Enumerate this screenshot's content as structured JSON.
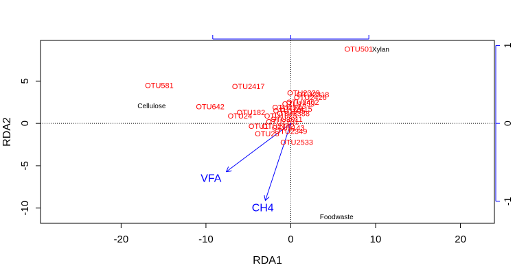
{
  "chart_data": {
    "type": "scatter",
    "title": "",
    "xlabel": "RDA1",
    "ylabel": "RDA2",
    "xlim": [
      -29.5,
      24
    ],
    "ylim": [
      -11.8,
      9.8
    ],
    "xticks": [
      "-20",
      "-10",
      "0",
      "10",
      "20"
    ],
    "xtick_values": [
      -20,
      -10,
      0,
      10,
      20
    ],
    "yticks": [
      "-10",
      "-5",
      "0",
      "5"
    ],
    "ytick_values": [
      -10,
      -5,
      0,
      5
    ],
    "right_axis": {
      "ticks": [
        "-1",
        "0",
        "1"
      ],
      "tick_values": [
        -1,
        0,
        1
      ],
      "scale_per_unit": 9.2
    },
    "top_axis": {
      "tick_values": [
        -1,
        0,
        1
      ],
      "scale_per_unit": 9.2
    },
    "grid": false,
    "reference_lines": {
      "x0": true,
      "y0": true
    },
    "otu_color": "#ff0000",
    "env_color": "#0000ff",
    "otus": [
      {
        "label": "OTU581",
        "x": -15.5,
        "y": 4.5
      },
      {
        "label": "OTU2417",
        "x": -5.0,
        "y": 4.4
      },
      {
        "label": "OTU642",
        "x": -9.5,
        "y": 2.0
      },
      {
        "label": "OTU501",
        "x": 8.0,
        "y": 8.8
      },
      {
        "label": "OTU2533",
        "x": 0.7,
        "y": -2.2
      },
      {
        "label": "OTU182",
        "x": -4.7,
        "y": 1.3
      },
      {
        "label": "OTU24",
        "x": -6.0,
        "y": 0.9
      },
      {
        "label": "OTU1",
        "x": -3.8,
        "y": -0.3
      },
      {
        "label": "OTU23",
        "x": -2.8,
        "y": -1.2
      },
      {
        "label": "OTU2329",
        "x": 1.5,
        "y": 3.6
      },
      {
        "label": "OTU2318",
        "x": 2.6,
        "y": 3.4
      },
      {
        "label": "OTU2426",
        "x": 2.3,
        "y": 3.1
      },
      {
        "label": "OTU2402",
        "x": 1.4,
        "y": 2.5
      },
      {
        "label": "OTU1359",
        "x": 0.9,
        "y": 2.3
      },
      {
        "label": "OTU2415",
        "x": 0.6,
        "y": 1.7
      },
      {
        "label": "OTU253",
        "x": -0.5,
        "y": 1.9
      },
      {
        "label": "OTU1105",
        "x": -0.2,
        "y": 1.5
      },
      {
        "label": "OTU2388",
        "x": 0.3,
        "y": 1.2
      },
      {
        "label": "OTU1823",
        "x": -1.2,
        "y": 0.9
      },
      {
        "label": "OTU2011",
        "x": -0.5,
        "y": 0.5
      },
      {
        "label": "OTU2442",
        "x": -1.5,
        "y": -0.3
      },
      {
        "label": "OTU2349",
        "x": 0.0,
        "y": -0.9
      },
      {
        "label": "OTU2201",
        "x": -1.0,
        "y": 0.2
      },
      {
        "label": "OTU2143",
        "x": -0.3,
        "y": -0.5
      }
    ],
    "sites": [
      {
        "label": "Xylan",
        "x": 10.6,
        "y": 8.8
      },
      {
        "label": "Cellulose",
        "x": -16.4,
        "y": 2.1
      },
      {
        "label": "Foodwaste",
        "x": 5.4,
        "y": -11.0
      }
    ],
    "env_vectors": [
      {
        "label": "VFA",
        "x": -7.6,
        "y": -5.7,
        "label_x": -9.4,
        "label_y": -6.4
      },
      {
        "label": "CH4",
        "x": -3.0,
        "y": -9.1,
        "label_x": -3.3,
        "label_y": -9.9
      }
    ]
  }
}
